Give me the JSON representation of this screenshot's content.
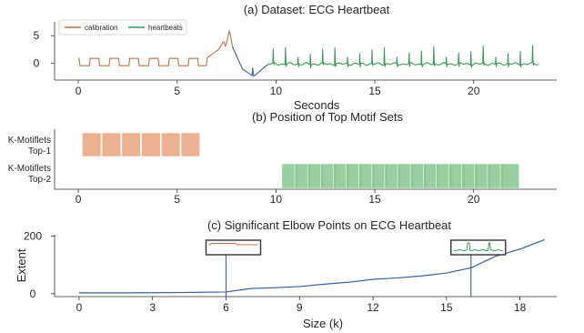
{
  "chart_data": [
    {
      "id": "a",
      "type": "line",
      "title": "(a) Dataset: ECG Heartbeat",
      "xlabel": "Seconds",
      "ylabel": "",
      "xlim": [
        -1.2,
        24.2
      ],
      "ylim": [
        -3,
        7.5
      ],
      "xticks": [
        0,
        5,
        10,
        15,
        20
      ],
      "yticks": [
        0,
        5
      ],
      "legend": {
        "placement": "top-left",
        "entries": [
          "calibration",
          "heartbeats"
        ]
      },
      "series": [
        {
          "name": "calibration",
          "color": "#c0704a",
          "segment": [
            0,
            7.8
          ]
        },
        {
          "name": "",
          "color": "#3b5fa0",
          "segment": [
            7.8,
            9.6
          ]
        },
        {
          "name": "heartbeats",
          "color": "#3a9a55",
          "segment": [
            9.6,
            23.3
          ]
        }
      ]
    },
    {
      "id": "b",
      "type": "bar",
      "title": "(b) Position of Top Motif Sets",
      "categories": [
        "K-Motiflets Top-1",
        "K-Motiflets Top-2"
      ],
      "row_labels": [
        [
          "K-Motiflets",
          "Top-1"
        ],
        [
          "K-Motiflets",
          "Top-2"
        ]
      ],
      "xlim": [
        -1.2,
        24.2
      ],
      "xticks": [
        0,
        5,
        10,
        15,
        20
      ],
      "colors": [
        "#e8a37e",
        "#86c58f"
      ],
      "occurrences": [
        [
          [
            0.2,
            1.15
          ],
          [
            1.2,
            2.15
          ],
          [
            2.2,
            3.15
          ],
          [
            3.2,
            4.15
          ],
          [
            4.2,
            5.15
          ],
          [
            5.2,
            6.15
          ]
        ],
        [
          [
            10.3,
            11.1
          ],
          [
            10.95,
            11.75
          ],
          [
            11.6,
            12.4
          ],
          [
            12.25,
            13.05
          ],
          [
            12.9,
            13.7
          ],
          [
            13.55,
            14.35
          ],
          [
            14.2,
            15.0
          ],
          [
            14.85,
            15.65
          ],
          [
            15.5,
            16.3
          ],
          [
            16.15,
            16.95
          ],
          [
            16.8,
            17.6
          ],
          [
            17.45,
            18.25
          ],
          [
            18.1,
            18.9
          ],
          [
            18.75,
            19.55
          ],
          [
            19.4,
            20.2
          ],
          [
            20.05,
            20.85
          ],
          [
            20.7,
            21.5
          ],
          [
            21.35,
            22.3
          ]
        ]
      ]
    },
    {
      "id": "c",
      "type": "line",
      "title": "(c) Significant Elbow Points on ECG Heartbeat",
      "xlabel": "Size (k)",
      "ylabel": "Extent",
      "xlim": [
        -1,
        19.5
      ],
      "ylim": [
        -10,
        205
      ],
      "xticks": [
        0,
        3,
        6,
        9,
        12,
        15,
        18
      ],
      "yticks": [
        0,
        200
      ],
      "color": "#3b5fa0",
      "x": [
        0,
        1,
        2,
        3,
        4,
        5,
        6,
        7,
        8,
        9,
        10,
        11,
        12,
        13,
        14,
        15,
        16,
        17,
        18,
        19
      ],
      "values": [
        3,
        3,
        3,
        3.5,
        4,
        5,
        6,
        18,
        21,
        25,
        33,
        40,
        50,
        55,
        62,
        72,
        90,
        130,
        155,
        188
      ],
      "elbows": [
        6,
        16
      ]
    }
  ]
}
